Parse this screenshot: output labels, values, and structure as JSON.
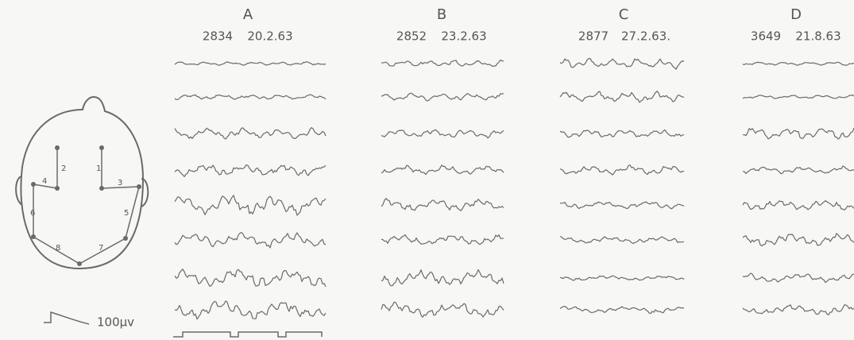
{
  "columns": [
    {
      "letter": "A",
      "record": "2834",
      "date": "20.2.63"
    },
    {
      "letter": "B",
      "record": "2852",
      "date": "23.2.63"
    },
    {
      "letter": "C",
      "record": "2877",
      "date": "27.2.63."
    },
    {
      "letter": "D",
      "record": "3649",
      "date": "21.8.63"
    }
  ],
  "head": {
    "electrodes": [
      "1",
      "2",
      "3",
      "4",
      "5",
      "6",
      "7",
      "8"
    ]
  },
  "calibration": {
    "label": "100µv"
  }
}
